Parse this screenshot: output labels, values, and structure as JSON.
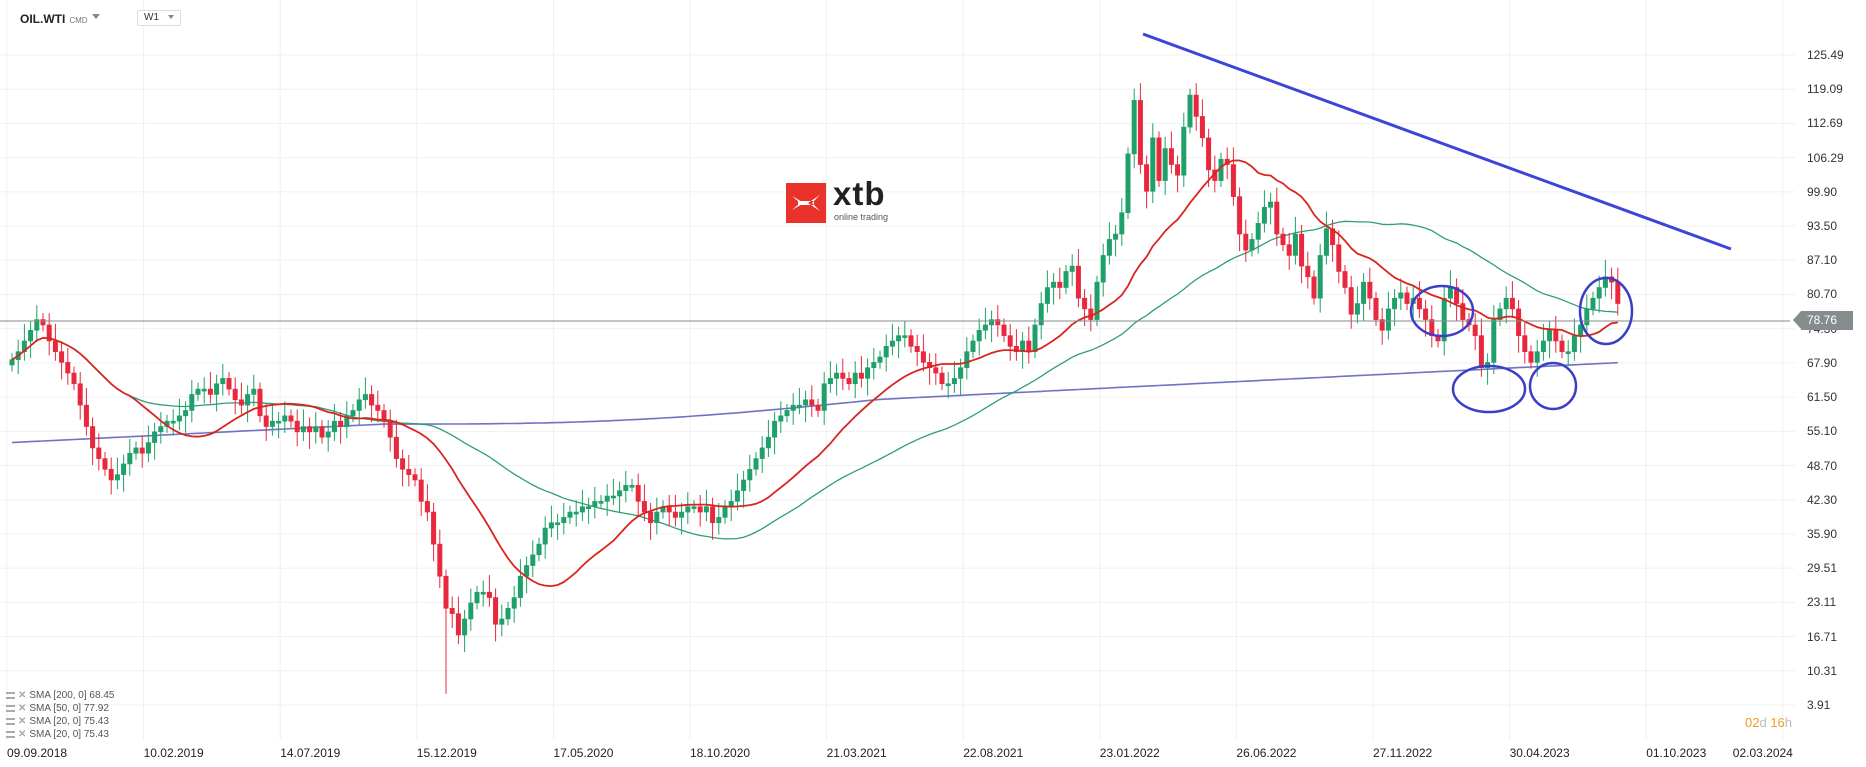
{
  "header": {
    "symbol": "OIL.WTI",
    "symbol_type": "CMD",
    "timeframe": "W1"
  },
  "logo": {
    "brand": "xtb",
    "tagline": "online trading"
  },
  "current_price": "78.76",
  "countdown": {
    "days": "02",
    "d": "d",
    "hours": "16",
    "h": "h"
  },
  "legend": [
    {
      "label": "SMA [200, 0] 68.45"
    },
    {
      "label": "SMA [50, 0] 77.92"
    },
    {
      "label": "SMA [20, 0] 75.43"
    },
    {
      "label": "SMA [20, 0] 75.43"
    }
  ],
  "colors": {
    "bull": "#1fa06a",
    "bear": "#e8283c",
    "sma20": "#d9251d",
    "sma50": "#2e9e77",
    "sma200": "#6f73c4",
    "trendline": "#3e45d6",
    "annotation": "#3b3fc6",
    "grid": "#f0f0f0",
    "price_line": "#868b8e"
  },
  "chart_data": {
    "type": "candlestick",
    "title": "OIL.WTI CMD W1",
    "xlabel": "",
    "ylabel": "",
    "ylim": [
      3.91,
      125.49
    ],
    "y_ticks": [
      "125.49",
      "119.09",
      "112.69",
      "106.29",
      "99.90",
      "93.50",
      "87.10",
      "80.70",
      "74.30",
      "67.90",
      "61.50",
      "55.10",
      "48.70",
      "42.30",
      "35.90",
      "29.51",
      "23.11",
      "16.71",
      "10.31",
      "3.91"
    ],
    "x_ticks": [
      "09.09.2018",
      "10.02.2019",
      "14.07.2019",
      "15.12.2019",
      "17.05.2020",
      "18.10.2020",
      "21.03.2021",
      "22.08.2021",
      "23.01.2022",
      "26.06.2022",
      "27.11.2022",
      "30.04.2023",
      "01.10.2023",
      "02.03.2024"
    ],
    "last_price": 78.76,
    "grid": true,
    "ohlc_close_approx": [
      68.5,
      70,
      72,
      74,
      76,
      75,
      72,
      70,
      68,
      66,
      64,
      60,
      56,
      52,
      50,
      48,
      46,
      47,
      49,
      51,
      52,
      51,
      53,
      55,
      56,
      57,
      57,
      58,
      59,
      62,
      63,
      63,
      62,
      64,
      65,
      63,
      61,
      60,
      62,
      63,
      58,
      56,
      57,
      57,
      58,
      57,
      55,
      56,
      55,
      56,
      54,
      55,
      57,
      56,
      58,
      59,
      61,
      62,
      60,
      59,
      57,
      54,
      50,
      48,
      47,
      46,
      42,
      40,
      34,
      28,
      22,
      21,
      17,
      20,
      23,
      25,
      25,
      24,
      19,
      20,
      22,
      24,
      28,
      30,
      32,
      34,
      37,
      38,
      38,
      39,
      40,
      40,
      41,
      41,
      42,
      42,
      43,
      43,
      44,
      45,
      45,
      42,
      40,
      38,
      40,
      41,
      40,
      39,
      40,
      41,
      41,
      40,
      41,
      38,
      39,
      41,
      42,
      44,
      46,
      48,
      50,
      52,
      54,
      57,
      58,
      59,
      60,
      60,
      61,
      60,
      59,
      64,
      65,
      66,
      65,
      64,
      66,
      65,
      67,
      68,
      69,
      71,
      72,
      73,
      73,
      71,
      70,
      68,
      67,
      66,
      64,
      64,
      65,
      67,
      70,
      72,
      74,
      75,
      76,
      75,
      73,
      71,
      70,
      72,
      70,
      75,
      79,
      82,
      83,
      82,
      85,
      86,
      80,
      78,
      76,
      83,
      88,
      91,
      92,
      96,
      107,
      117,
      105,
      100,
      110,
      102,
      108,
      105,
      103,
      112,
      118,
      114,
      110,
      104,
      102,
      106,
      105,
      99,
      92,
      89,
      91,
      94,
      97,
      98,
      92,
      90,
      88,
      92,
      86,
      84,
      80,
      88,
      93,
      90,
      85,
      82,
      77,
      79,
      83,
      80,
      76,
      74,
      78,
      80,
      81,
      79,
      80,
      78,
      76,
      73,
      72,
      80,
      82,
      79,
      76,
      75,
      73,
      67,
      68,
      76,
      78,
      80,
      78,
      73,
      70,
      68,
      70,
      72,
      74,
      72,
      70,
      70,
      73,
      75,
      78,
      80,
      82,
      84,
      83,
      79
    ],
    "series": [
      {
        "name": "SMA 200",
        "value": 68.45
      },
      {
        "name": "SMA 50",
        "value": 77.92
      },
      {
        "name": "SMA 20",
        "value": 75.43
      }
    ],
    "annotations": [
      {
        "type": "trendline",
        "from": [
          "23.01.2022",
          128.5
        ],
        "to": [
          "~Oct 2023",
          93.0
        ]
      },
      {
        "type": "ellipse",
        "label": "consolidation near SMA20 late 2022"
      },
      {
        "type": "ellipse",
        "label": "support at SMA200 Mar 2023"
      },
      {
        "type": "ellipse",
        "label": "support at SMA200 May-Jun 2023"
      },
      {
        "type": "ellipse",
        "label": "recent bounce Jul-Aug 2023"
      }
    ]
  }
}
